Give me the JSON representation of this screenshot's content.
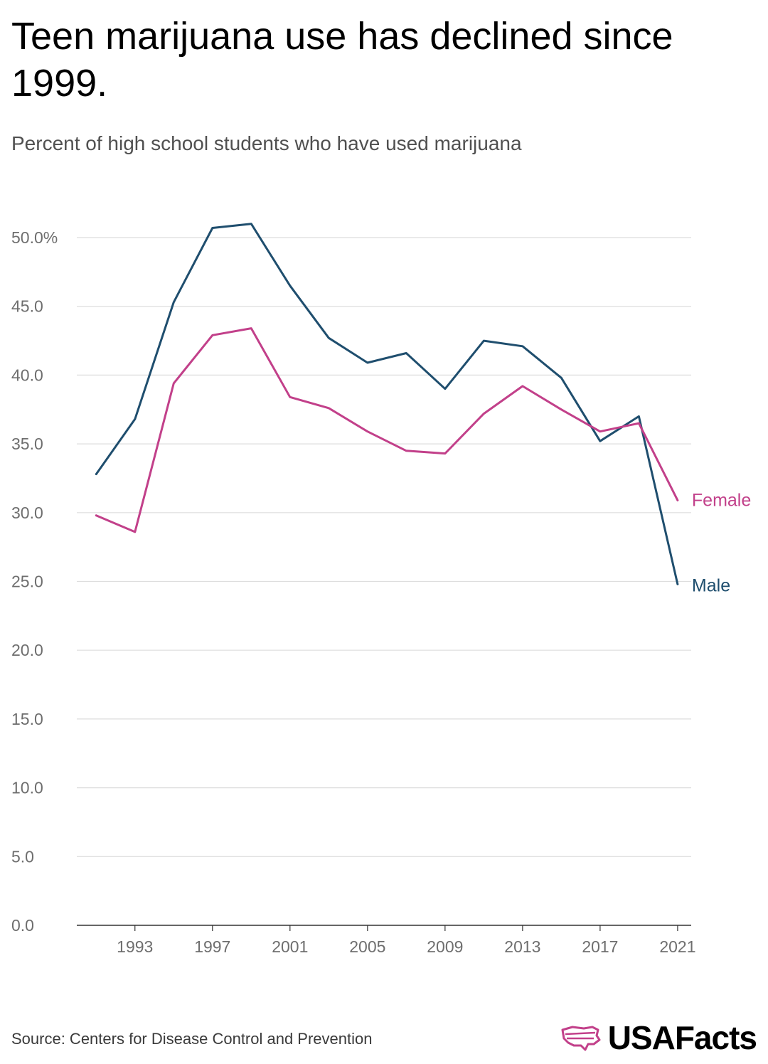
{
  "title": "Teen marijuana use has declined since 1999.",
  "subtitle": "Percent of high school students who have used marijuana",
  "source": "Source: Centers for Disease Control and Prevention",
  "brand": "USAFacts",
  "colors": {
    "male": "#1f4e6e",
    "female": "#c2408a",
    "grid": "#dddddd",
    "axis": "#333333",
    "tick": "#6e6e6e"
  },
  "chart_data": {
    "type": "line",
    "title": "Teen marijuana use has declined since 1999.",
    "subtitle": "Percent of high school students who have used marijuana",
    "xlabel": "",
    "ylabel": "",
    "x": [
      1991,
      1993,
      1995,
      1997,
      1999,
      2001,
      2003,
      2005,
      2007,
      2009,
      2011,
      2013,
      2015,
      2017,
      2019,
      2021
    ],
    "xlim": [
      1990,
      2021.7
    ],
    "ylim": [
      0,
      50
    ],
    "ytick_values": [
      0,
      5,
      10,
      15,
      20,
      25,
      30,
      35,
      40,
      45,
      50
    ],
    "ytick_labels": [
      "0.0",
      "5.0",
      "10.0",
      "15.0",
      "20.0",
      "25.0",
      "30.0",
      "35.0",
      "40.0",
      "45.0",
      "50.0%"
    ],
    "xtick_values": [
      1993,
      1997,
      2001,
      2005,
      2009,
      2013,
      2017,
      2021
    ],
    "xtick_labels": [
      "1993",
      "1997",
      "2001",
      "2005",
      "2009",
      "2013",
      "2017",
      "2021"
    ],
    "grid": true,
    "series": [
      {
        "name": "Male",
        "label": "Male",
        "color": "#1f4e6e",
        "values": [
          32.8,
          36.8,
          45.3,
          50.7,
          51.0,
          46.5,
          42.7,
          40.9,
          41.6,
          39.0,
          42.5,
          42.1,
          39.8,
          35.2,
          37.0,
          24.8
        ]
      },
      {
        "name": "Female",
        "label": "Female",
        "color": "#c2408a",
        "values": [
          29.8,
          28.6,
          39.4,
          42.9,
          43.4,
          38.4,
          37.6,
          35.9,
          34.5,
          34.3,
          37.2,
          39.2,
          37.5,
          35.9,
          36.5,
          30.9
        ]
      }
    ]
  }
}
